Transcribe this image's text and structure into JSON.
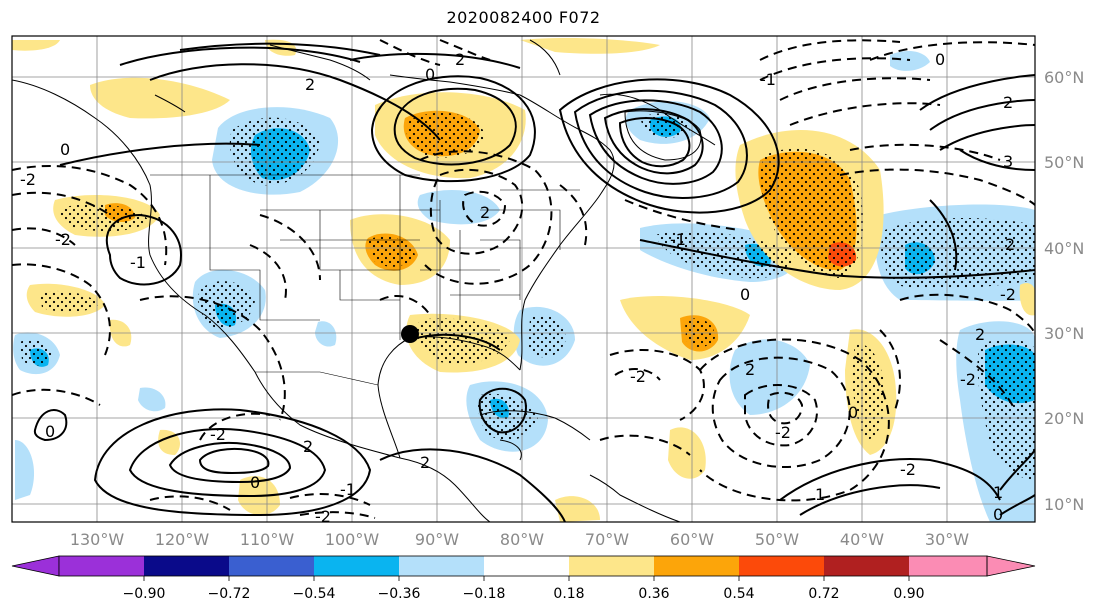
{
  "title": "2020082400 F072",
  "lon_ticks": [
    "130°W",
    "120°W",
    "110°W",
    "100°W",
    "90°W",
    "80°W",
    "70°W",
    "60°W",
    "50°W",
    "40°W",
    "30°W"
  ],
  "lat_ticks": [
    "60°N",
    "50°N",
    "40°N",
    "30°N",
    "20°N",
    "10°N"
  ],
  "colorbar": {
    "labels": [
      "−0.90",
      "−0.72",
      "−0.54",
      "−0.36",
      "−0.18",
      "0.18",
      "0.36",
      "0.54",
      "0.72",
      "0.90"
    ],
    "colors": [
      "#9b30d9",
      "#0a0a8a",
      "#3a5fd0",
      "#0ab4f0",
      "#b4e0fa",
      "#ffffff",
      "#fde68a",
      "#fca50a",
      "#fc4a0a",
      "#b02020",
      "#fb8cb4"
    ]
  },
  "contour_labels": [
    "2",
    "0",
    "2",
    "0",
    "-2",
    "-2",
    "-1",
    "2",
    "0",
    "-1",
    "-2",
    "2",
    "0",
    "-2",
    "2",
    "-2",
    "2",
    "0",
    "-2",
    "0",
    "1",
    "-2",
    "-1",
    "2",
    "-2",
    "-2",
    "2",
    "0",
    "2",
    "3",
    "-1",
    "0",
    "1"
  ],
  "marker": "storm-center"
}
